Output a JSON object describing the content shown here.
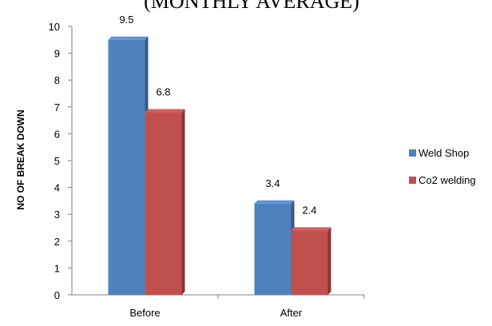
{
  "chart_data": {
    "type": "bar",
    "title": "(MONTHLY AVERAGE)",
    "xlabel": "",
    "ylabel": "NO OF BREAK DOWN",
    "categories": [
      "Before",
      "After"
    ],
    "series": [
      {
        "name": "Weld Shop",
        "values": [
          9.5,
          3.4
        ],
        "color": "#4F81BD"
      },
      {
        "name": "Co2 welding",
        "values": [
          6.8,
          2.4
        ],
        "color": "#C0504D"
      }
    ],
    "ylim": [
      0,
      10
    ],
    "yticks": [
      0,
      1,
      2,
      3,
      4,
      5,
      6,
      7,
      8,
      9,
      10
    ],
    "grid": false,
    "legend_position": "right",
    "bar_style": "3d"
  }
}
